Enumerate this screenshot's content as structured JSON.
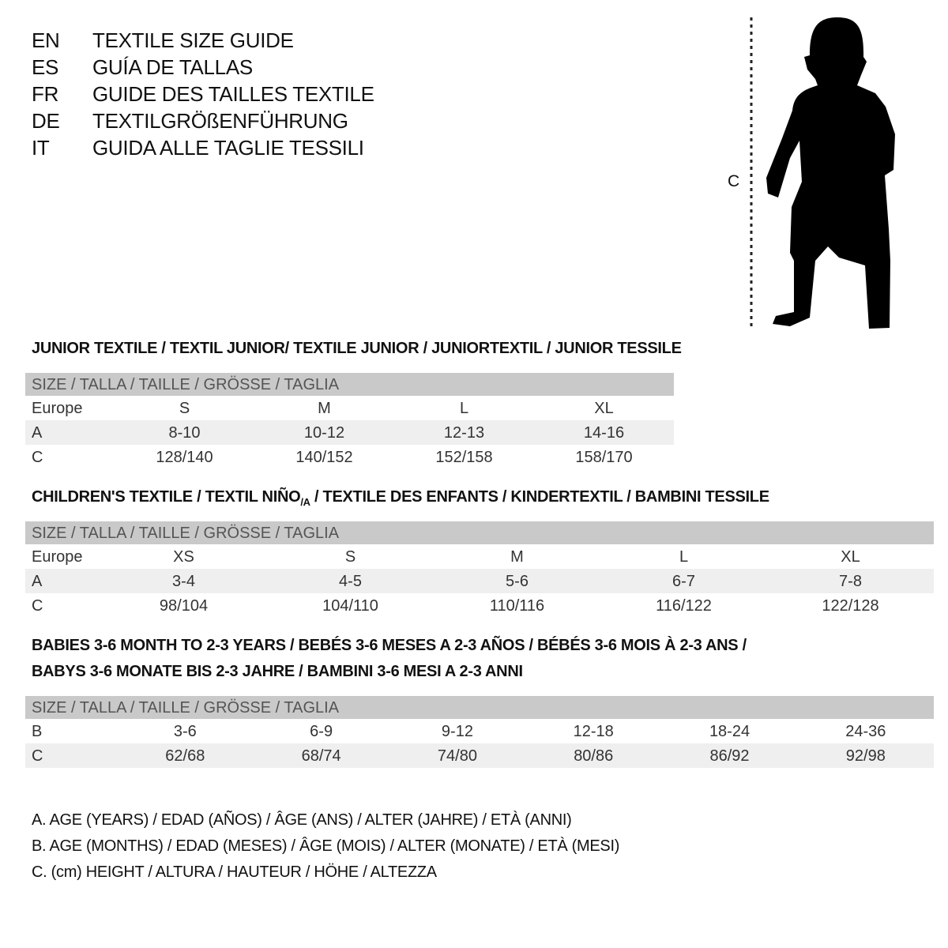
{
  "titles": [
    {
      "code": "EN",
      "text": "TEXTILE SIZE GUIDE"
    },
    {
      "code": "ES",
      "text": "GUÍA DE TALLAS"
    },
    {
      "code": "FR",
      "text": "GUIDE DES TAILLES TEXTILE"
    },
    {
      "code": "DE",
      "text": "TEXTILGRÖßENFÜHRUNG"
    },
    {
      "code": "IT",
      "text": "GUIDA ALLE TAGLIE TESSILI"
    }
  ],
  "figure": {
    "height_label": "C",
    "icon": "child-silhouette-icon"
  },
  "junior": {
    "heading": "JUNIOR TEXTILE / TEXTIL JUNIOR/ TEXTILE JUNIOR / JUNIORTEXTIL / JUNIOR TESSILE",
    "header": "SIZE / TALLA / TAILLE / GRÖSSE / TAGLIA",
    "rows": [
      {
        "label": "Europe",
        "cells": [
          "S",
          "M",
          "L",
          "XL"
        ]
      },
      {
        "label": "A",
        "cells": [
          "8-10",
          "10-12",
          "12-13",
          "14-16"
        ]
      },
      {
        "label": "C",
        "cells": [
          "128/140",
          "140/152",
          "152/158",
          "158/170"
        ]
      }
    ]
  },
  "children": {
    "heading_pre": "CHILDREN'S TEXTILE / TEXTIL NIÑO",
    "heading_sub": "/A",
    "heading_post": " / TEXTILE DES ENFANTS / KINDERTEXTIL / BAMBINI TESSILE",
    "header": "SIZE / TALLA / TAILLE / GRÖSSE / TAGLIA",
    "rows": [
      {
        "label": "Europe",
        "cells": [
          "XS",
          "S",
          "M",
          "L",
          "XL"
        ]
      },
      {
        "label": "A",
        "cells": [
          "3-4",
          "4-5",
          "5-6",
          "6-7",
          "7-8"
        ]
      },
      {
        "label": "C",
        "cells": [
          "98/104",
          "104/110",
          "110/116",
          "116/122",
          "122/128"
        ]
      }
    ]
  },
  "babies": {
    "heading_line1": "BABIES 3-6 MONTH TO 2-3 YEARS / BEBÉS 3-6 MESES A 2-3 AÑOS / BÉBÉS 3-6 MOIS À 2-3 ANS /",
    "heading_line2": "BABYS 3-6 MONATE BIS 2-3 JAHRE / BAMBINI 3-6 MESI A 2-3 ANNI",
    "header": "SIZE / TALLA / TAILLE / GRÖSSE / TAGLIA",
    "rows": [
      {
        "label": "B",
        "cells": [
          "3-6",
          "6-9",
          "9-12",
          "12-18",
          "18-24",
          "24-36"
        ]
      },
      {
        "label": "C",
        "cells": [
          "62/68",
          "68/74",
          "74/80",
          "80/86",
          "86/92",
          "92/98"
        ]
      }
    ]
  },
  "legend": [
    "A. AGE (YEARS) / EDAD (AÑOS) / ÂGE (ANS) / ALTER (JAHRE) / ETÀ (ANNI)",
    "B. AGE (MONTHS) / EDAD (MESES) / ÂGE (MOIS) / ALTER (MONATE) / ETÀ (MESI)",
    "C. (cm) HEIGHT / ALTURA / HAUTEUR / HÖHE / ALTEZZA"
  ]
}
